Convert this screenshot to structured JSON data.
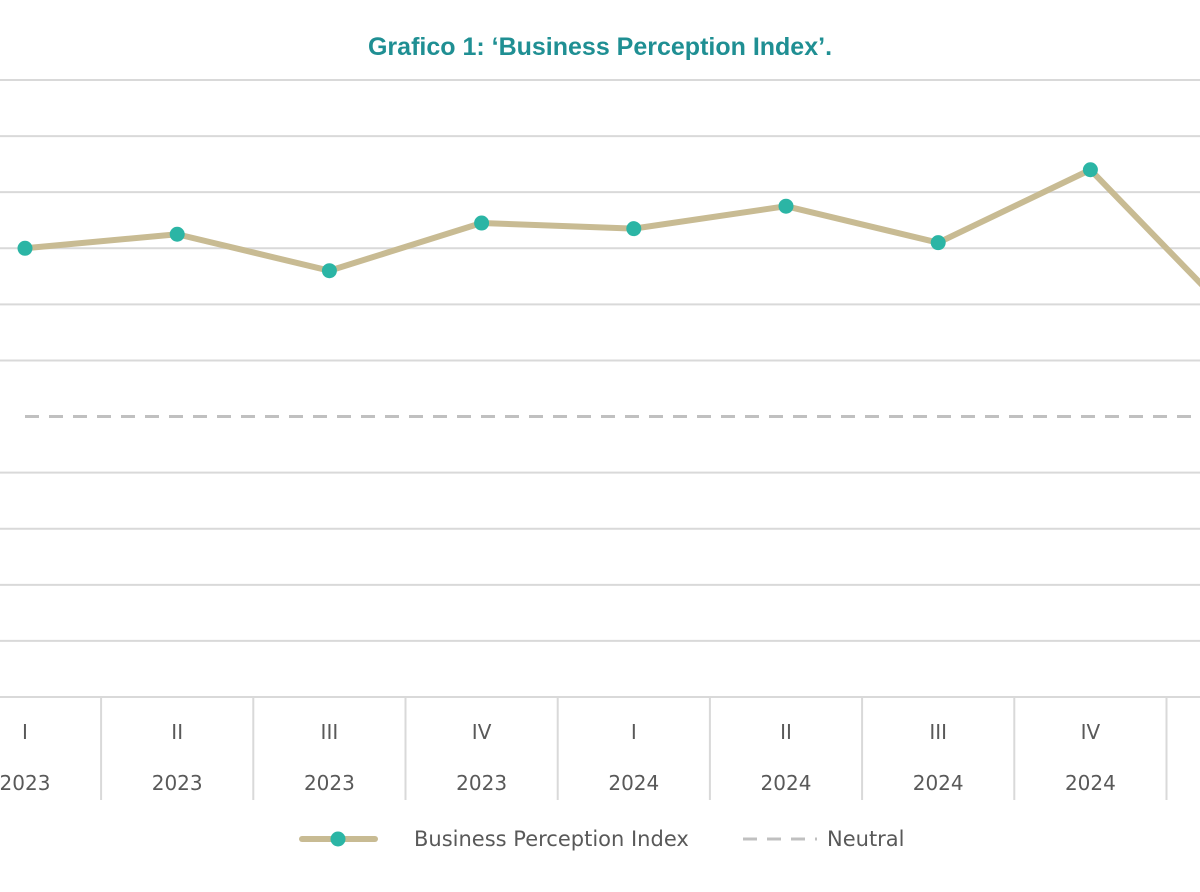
{
  "chart_data": {
    "type": "line",
    "title": "Grafico 1: ‘Business Perception Index’.",
    "categories": [
      {
        "quarter": "I",
        "year": "2023"
      },
      {
        "quarter": "II",
        "year": "2023"
      },
      {
        "quarter": "III",
        "year": "2023"
      },
      {
        "quarter": "IV",
        "year": "2023"
      },
      {
        "quarter": "I",
        "year": "2024"
      },
      {
        "quarter": "II",
        "year": "2024"
      },
      {
        "quarter": "III",
        "year": "2024"
      },
      {
        "quarter": "IV",
        "year": "2024"
      },
      {
        "quarter": "",
        "year": ""
      }
    ],
    "series": [
      {
        "name": "Business Perception Index",
        "values": [
          3.0,
          3.25,
          2.6,
          3.45,
          3.35,
          3.75,
          3.1,
          4.4,
          1.6
        ],
        "color": "#c8bb93",
        "marker_color": "#2bb5a5"
      },
      {
        "name": "Neutral",
        "values": [
          0,
          0,
          0,
          0,
          0,
          0,
          0,
          0,
          0
        ],
        "color": "#c0c0c0",
        "style": "dashed"
      }
    ],
    "ylim": [
      -5,
      6
    ],
    "gridlines": true,
    "legend": "bottom",
    "xlabel": "",
    "ylabel": ""
  }
}
